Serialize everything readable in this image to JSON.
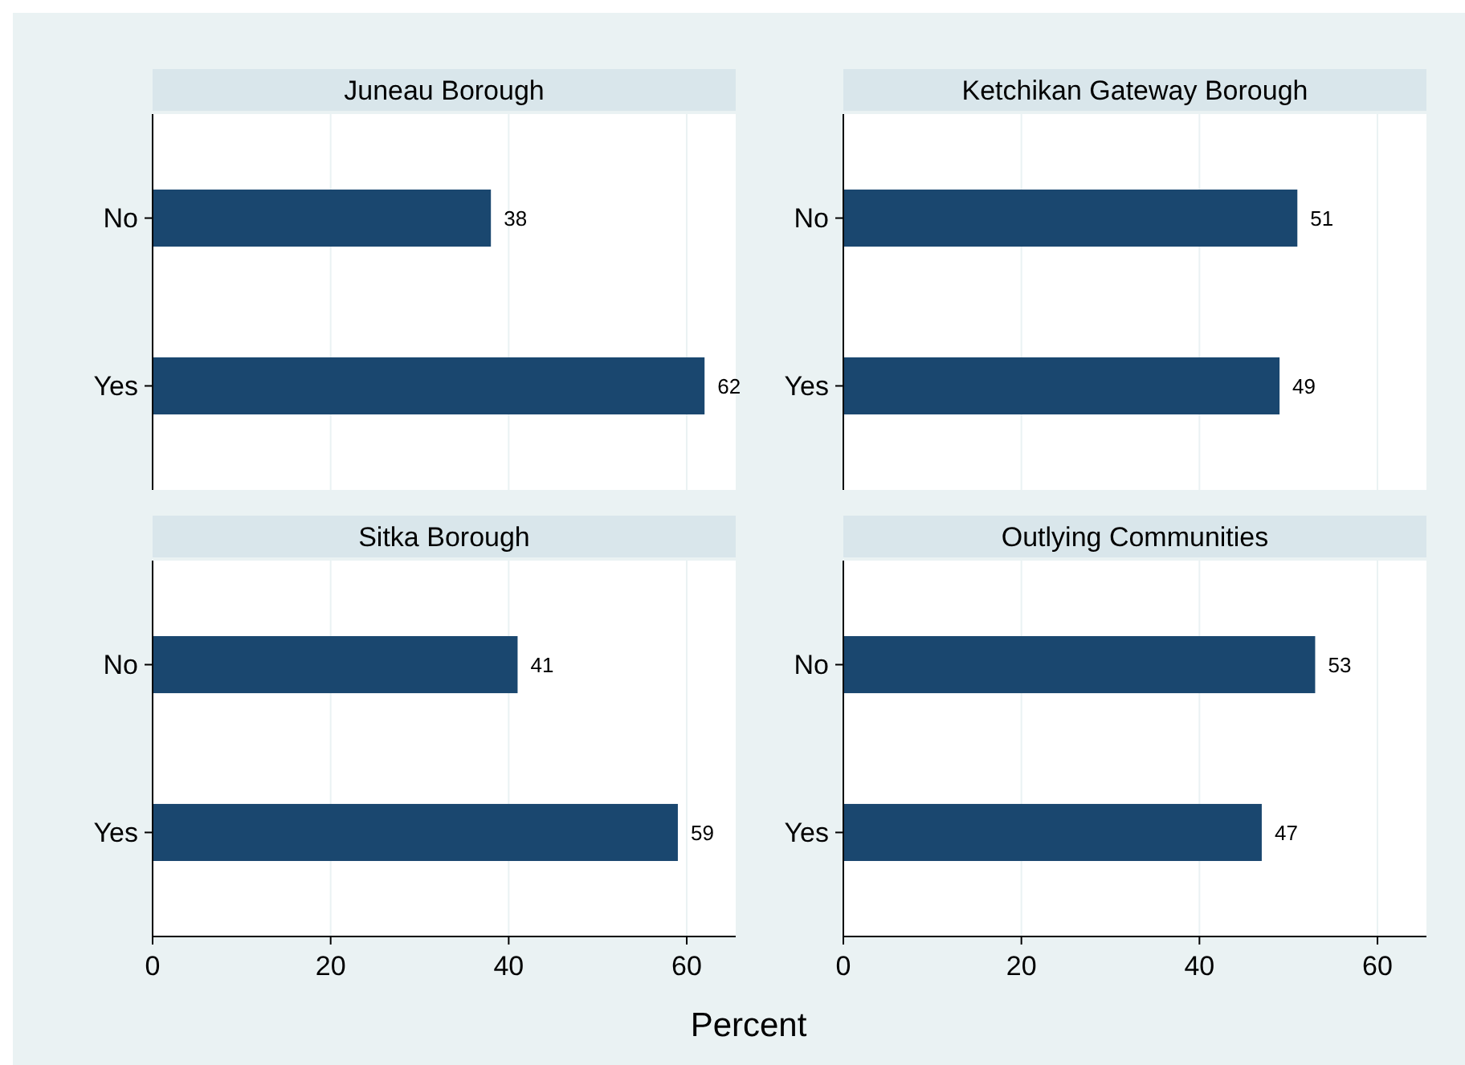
{
  "chart_data": [
    {
      "type": "bar",
      "orientation": "horizontal",
      "title": "Juneau Borough",
      "categories": [
        "No",
        "Yes"
      ],
      "values": [
        38,
        62
      ],
      "color": "#1a476f",
      "xlim": [
        0,
        65.5
      ],
      "xticks": [
        0,
        20,
        40,
        60
      ],
      "data_labels": true,
      "grid": "x",
      "tick_labels": "y"
    },
    {
      "type": "bar",
      "orientation": "horizontal",
      "title": "Ketchikan Gateway Borough",
      "categories": [
        "No",
        "Yes"
      ],
      "values": [
        51,
        49
      ],
      "color": "#1a476f",
      "xlim": [
        0,
        65.5
      ],
      "xticks": [
        0,
        20,
        40,
        60
      ],
      "data_labels": true,
      "grid": "x",
      "tick_labels": "y"
    },
    {
      "type": "bar",
      "orientation": "horizontal",
      "title": "Sitka Borough",
      "categories": [
        "No",
        "Yes"
      ],
      "values": [
        41,
        59
      ],
      "color": "#1a476f",
      "xlim": [
        0,
        65.5
      ],
      "xticks": [
        0,
        20,
        40,
        60
      ],
      "data_labels": true,
      "grid": "x",
      "xlabel": "Percent"
    },
    {
      "type": "bar",
      "orientation": "horizontal",
      "title": "Outlying Communities",
      "categories": [
        "No",
        "Yes"
      ],
      "values": [
        53,
        47
      ],
      "color": "#1a476f",
      "xlim": [
        0,
        65.5
      ],
      "xticks": [
        0,
        20,
        40,
        60
      ],
      "data_labels": true,
      "grid": "x"
    }
  ]
}
